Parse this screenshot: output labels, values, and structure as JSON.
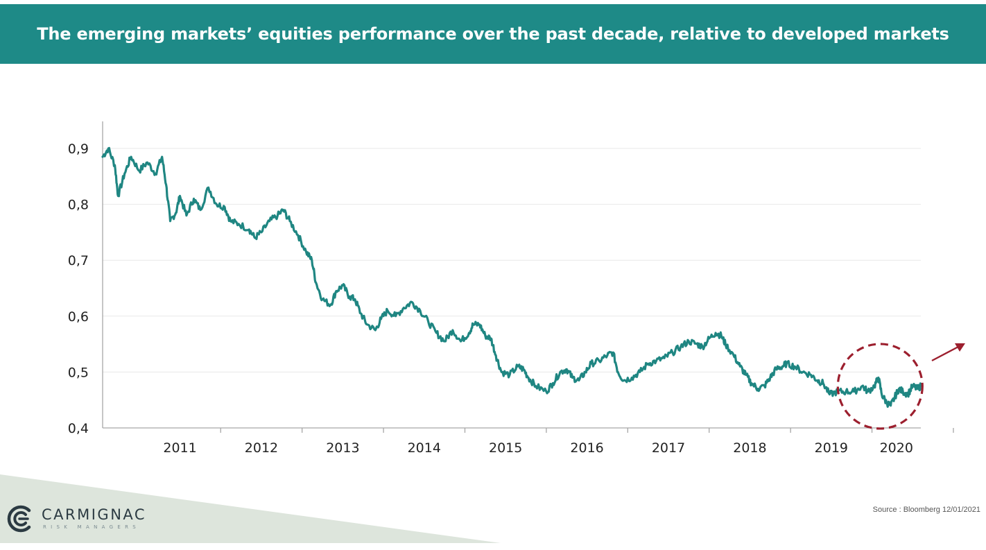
{
  "slide": {
    "title": "The emerging markets’ equities performance over the past decade, relative to developed markets",
    "source": "Source  : Bloomberg 12/01/2021",
    "logo": {
      "name": "CARMIGNAC",
      "tagline": "RISK MANAGERS"
    }
  },
  "colors": {
    "title_bar": "#1e8a87",
    "line": "#1f8682",
    "highlight": "#9c1f2e",
    "grid": "#e8e8e8",
    "axis": "#a6a6a6",
    "corner_band": "#dde5dc"
  },
  "chart_data": {
    "type": "line",
    "title": "",
    "xlabel": "",
    "ylabel": "",
    "x_range": [
      2010.55,
      2020.6
    ],
    "ylim": [
      0.4,
      0.95
    ],
    "yticks": [
      0.4,
      0.5,
      0.6,
      0.7,
      0.8,
      0.9
    ],
    "ytick_labels": [
      "0,4",
      "0,5",
      "0,6",
      "0,7",
      "0,8",
      "0,9"
    ],
    "categories": [
      "2011",
      "2012",
      "2013",
      "2014",
      "2015",
      "2016",
      "2017",
      "2018",
      "2019",
      "2020"
    ],
    "grid": true,
    "legend": "none",
    "series": [
      {
        "values": [
          [
            2010.55,
            0.885
          ],
          [
            2010.62,
            0.9
          ],
          [
            2010.7,
            0.87
          ],
          [
            2010.74,
            0.815
          ],
          [
            2010.82,
            0.855
          ],
          [
            2010.9,
            0.885
          ],
          [
            2011.0,
            0.86
          ],
          [
            2011.1,
            0.875
          ],
          [
            2011.2,
            0.855
          ],
          [
            2011.28,
            0.885
          ],
          [
            2011.33,
            0.835
          ],
          [
            2011.38,
            0.77
          ],
          [
            2011.45,
            0.785
          ],
          [
            2011.5,
            0.815
          ],
          [
            2011.58,
            0.78
          ],
          [
            2011.67,
            0.81
          ],
          [
            2011.75,
            0.79
          ],
          [
            2011.85,
            0.83
          ],
          [
            2011.95,
            0.8
          ],
          [
            2012.05,
            0.795
          ],
          [
            2012.12,
            0.77
          ],
          [
            2012.22,
            0.765
          ],
          [
            2012.35,
            0.755
          ],
          [
            2012.42,
            0.74
          ],
          [
            2012.5,
            0.75
          ],
          [
            2012.6,
            0.77
          ],
          [
            2012.7,
            0.78
          ],
          [
            2012.77,
            0.79
          ],
          [
            2012.85,
            0.77
          ],
          [
            2012.95,
            0.745
          ],
          [
            2013.05,
            0.715
          ],
          [
            2013.12,
            0.7
          ],
          [
            2013.17,
            0.66
          ],
          [
            2013.25,
            0.63
          ],
          [
            2013.35,
            0.62
          ],
          [
            2013.42,
            0.645
          ],
          [
            2013.5,
            0.655
          ],
          [
            2013.58,
            0.635
          ],
          [
            2013.65,
            0.63
          ],
          [
            2013.72,
            0.605
          ],
          [
            2013.8,
            0.585
          ],
          [
            2013.9,
            0.575
          ],
          [
            2013.97,
            0.595
          ],
          [
            2014.05,
            0.61
          ],
          [
            2014.15,
            0.6
          ],
          [
            2014.25,
            0.615
          ],
          [
            2014.35,
            0.625
          ],
          [
            2014.45,
            0.61
          ],
          [
            2014.55,
            0.59
          ],
          [
            2014.65,
            0.57
          ],
          [
            2014.75,
            0.555
          ],
          [
            2014.85,
            0.575
          ],
          [
            2014.95,
            0.555
          ],
          [
            2015.05,
            0.57
          ],
          [
            2015.1,
            0.585
          ],
          [
            2015.18,
            0.585
          ],
          [
            2015.25,
            0.565
          ],
          [
            2015.32,
            0.56
          ],
          [
            2015.38,
            0.53
          ],
          [
            2015.45,
            0.5
          ],
          [
            2015.55,
            0.495
          ],
          [
            2015.65,
            0.51
          ],
          [
            2015.72,
            0.505
          ],
          [
            2015.78,
            0.49
          ],
          [
            2015.87,
            0.475
          ],
          [
            2016.0,
            0.465
          ],
          [
            2016.08,
            0.48
          ],
          [
            2016.17,
            0.5
          ],
          [
            2016.25,
            0.505
          ],
          [
            2016.32,
            0.49
          ],
          [
            2016.4,
            0.485
          ],
          [
            2016.48,
            0.5
          ],
          [
            2016.55,
            0.515
          ],
          [
            2016.65,
            0.52
          ],
          [
            2016.75,
            0.53
          ],
          [
            2016.82,
            0.535
          ],
          [
            2016.88,
            0.5
          ],
          [
            2016.95,
            0.485
          ],
          [
            2017.05,
            0.49
          ],
          [
            2017.15,
            0.5
          ],
          [
            2017.25,
            0.515
          ],
          [
            2017.35,
            0.52
          ],
          [
            2017.45,
            0.525
          ],
          [
            2017.55,
            0.535
          ],
          [
            2017.65,
            0.545
          ],
          [
            2017.75,
            0.555
          ],
          [
            2017.85,
            0.55
          ],
          [
            2017.92,
            0.545
          ],
          [
            2018.0,
            0.56
          ],
          [
            2018.08,
            0.57
          ],
          [
            2018.15,
            0.565
          ],
          [
            2018.2,
            0.55
          ],
          [
            2018.3,
            0.53
          ],
          [
            2018.38,
            0.51
          ],
          [
            2018.45,
            0.495
          ],
          [
            2018.52,
            0.48
          ],
          [
            2018.6,
            0.47
          ],
          [
            2018.68,
            0.475
          ],
          [
            2018.75,
            0.49
          ],
          [
            2018.82,
            0.505
          ],
          [
            2018.9,
            0.51
          ],
          [
            2018.95,
            0.515
          ],
          [
            2019.05,
            0.51
          ],
          [
            2019.15,
            0.5
          ],
          [
            2019.25,
            0.495
          ],
          [
            2019.33,
            0.485
          ],
          [
            2019.4,
            0.48
          ],
          [
            2019.48,
            0.46
          ],
          [
            2019.58,
            0.465
          ],
          [
            2019.68,
            0.465
          ],
          [
            2019.78,
            0.465
          ],
          [
            2019.88,
            0.475
          ],
          [
            2019.95,
            0.465
          ],
          [
            2020.03,
            0.475
          ],
          [
            2020.08,
            0.49
          ],
          [
            2020.12,
            0.46
          ],
          [
            2020.18,
            0.445
          ],
          [
            2020.23,
            0.44
          ],
          [
            2020.28,
            0.455
          ],
          [
            2020.33,
            0.47
          ],
          [
            2020.38,
            0.465
          ],
          [
            2020.44,
            0.46
          ],
          [
            2020.5,
            0.475
          ],
          [
            2020.56,
            0.47
          ],
          [
            2020.6,
            0.475
          ]
        ]
      }
    ],
    "annotations": [
      {
        "type": "dashed-circle",
        "center": [
          2020.1,
          0.4745
        ],
        "note": ""
      },
      {
        "type": "arrow",
        "direction": "up-right",
        "note": ""
      }
    ]
  }
}
